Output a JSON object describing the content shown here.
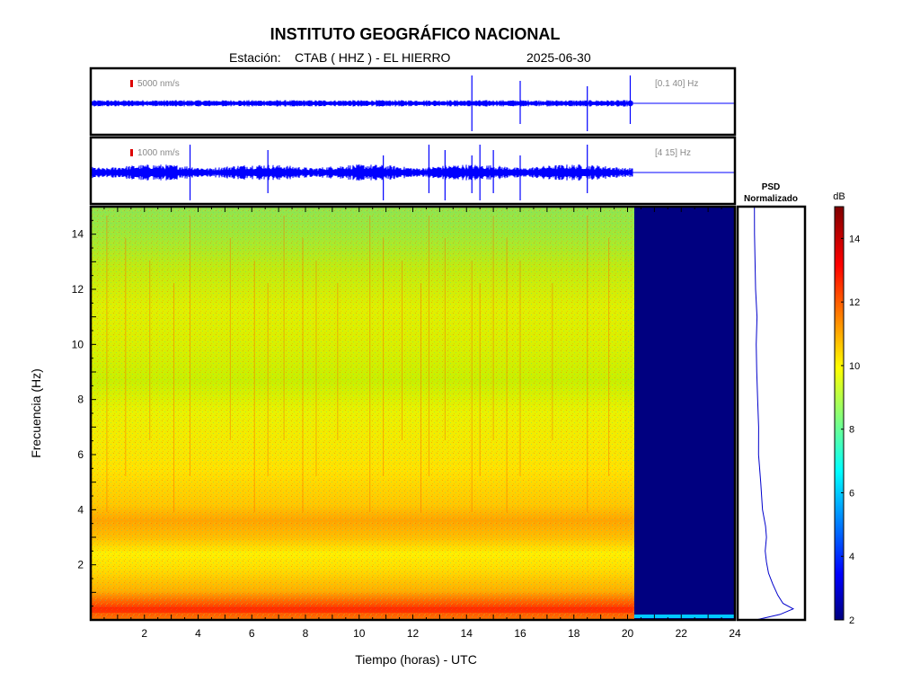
{
  "header": {
    "institution": "INSTITUTO GEOGRÁFICO NACIONAL",
    "station_label": "Estación:",
    "station": "CTAB ( HHZ ) - EL HIERRO",
    "date": "2025-06-30"
  },
  "colors": {
    "trace": "#0000ff",
    "scale_marker": "#dd0000",
    "no_data": "#000080"
  },
  "chart_data": [
    {
      "type": "line",
      "name": "seismogram-broadband",
      "scale_label": "5000 nm/s",
      "filter_label": "[0.1 40] Hz",
      "data_end_hour": 20.2,
      "xlim": [
        0,
        24
      ],
      "events_hours": [
        14.2,
        16.0,
        18.5,
        20.1
      ]
    },
    {
      "type": "line",
      "name": "seismogram-filtered",
      "scale_label": "1000 nm/s",
      "filter_label": "[4 15] Hz",
      "data_end_hour": 20.2,
      "xlim": [
        0,
        24
      ],
      "events_hours": [
        3.7,
        6.6,
        10.9,
        12.6,
        13.2,
        14.2,
        14.5,
        15.0,
        16.0,
        18.5
      ]
    },
    {
      "type": "heatmap",
      "name": "spectrogram",
      "xlabel": "Tiempo (horas) - UTC",
      "ylabel": "Frecuencia  (Hz)",
      "xlim": [
        0,
        24
      ],
      "ylim": [
        0,
        15
      ],
      "xticks": [
        2,
        4,
        6,
        8,
        10,
        12,
        14,
        16,
        18,
        20,
        22,
        24
      ],
      "yticks": [
        2,
        4,
        6,
        8,
        10,
        12,
        14
      ],
      "data_end_hour": 20.2,
      "profile_db": [
        {
          "f": 0.0,
          "db": 13.0
        },
        {
          "f": 0.3,
          "db": 13.8
        },
        {
          "f": 0.6,
          "db": 12.8
        },
        {
          "f": 1.0,
          "db": 11.4
        },
        {
          "f": 1.5,
          "db": 10.6
        },
        {
          "f": 2.0,
          "db": 10.4
        },
        {
          "f": 2.5,
          "db": 10.8
        },
        {
          "f": 3.0,
          "db": 11.6
        },
        {
          "f": 3.5,
          "db": 11.8
        },
        {
          "f": 4.0,
          "db": 11.2
        },
        {
          "f": 5.0,
          "db": 10.6
        },
        {
          "f": 6.0,
          "db": 10.2
        },
        {
          "f": 7.0,
          "db": 10.0
        },
        {
          "f": 8.0,
          "db": 9.6
        },
        {
          "f": 9.0,
          "db": 9.5
        },
        {
          "f": 10.0,
          "db": 9.7
        },
        {
          "f": 11.0,
          "db": 9.6
        },
        {
          "f": 12.0,
          "db": 9.4
        },
        {
          "f": 13.0,
          "db": 9.2
        },
        {
          "f": 14.0,
          "db": 8.9
        },
        {
          "f": 15.0,
          "db": 8.7
        }
      ],
      "stripe_hours": [
        0.6,
        1.3,
        2.2,
        3.1,
        3.7,
        5.2,
        6.1,
        6.6,
        7.2,
        7.9,
        8.4,
        9.2,
        10.4,
        10.9,
        11.6,
        12.3,
        12.6,
        13.2,
        14.2,
        14.5,
        15.0,
        15.5,
        16.0,
        17.2,
        18.5,
        19.3
      ]
    },
    {
      "type": "line",
      "name": "psd-normalizado",
      "title_line1": "PSD",
      "title_line2": "Normalizado",
      "points": [
        {
          "f": 0.0,
          "v": 0.1
        },
        {
          "f": 0.2,
          "v": 0.55
        },
        {
          "f": 0.4,
          "v": 0.82
        },
        {
          "f": 0.6,
          "v": 0.62
        },
        {
          "f": 0.9,
          "v": 0.52
        },
        {
          "f": 1.3,
          "v": 0.42
        },
        {
          "f": 1.7,
          "v": 0.35
        },
        {
          "f": 2.1,
          "v": 0.3
        },
        {
          "f": 2.5,
          "v": 0.28
        },
        {
          "f": 3.0,
          "v": 0.3
        },
        {
          "f": 3.4,
          "v": 0.29
        },
        {
          "f": 4.0,
          "v": 0.24
        },
        {
          "f": 5.0,
          "v": 0.2
        },
        {
          "f": 6.0,
          "v": 0.17
        },
        {
          "f": 7.0,
          "v": 0.15
        },
        {
          "f": 8.0,
          "v": 0.13
        },
        {
          "f": 9.0,
          "v": 0.12
        },
        {
          "f": 10.0,
          "v": 0.12
        },
        {
          "f": 11.0,
          "v": 0.12
        },
        {
          "f": 12.0,
          "v": 0.11
        },
        {
          "f": 13.0,
          "v": 0.1
        },
        {
          "f": 14.0,
          "v": 0.08
        },
        {
          "f": 15.0,
          "v": 0.07
        }
      ]
    },
    {
      "type": "heatmap",
      "name": "colorbar",
      "label": "dB",
      "range": [
        2,
        15
      ],
      "ticks": [
        2,
        4,
        6,
        8,
        10,
        12,
        14
      ]
    }
  ]
}
